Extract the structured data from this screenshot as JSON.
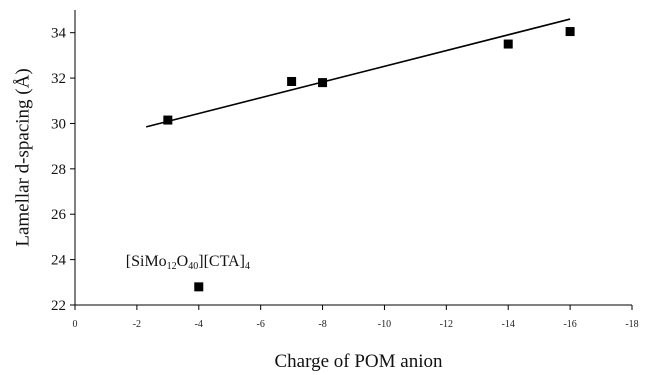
{
  "chart_data": {
    "type": "scatter",
    "xlabel": "Charge of POM anion",
    "ylabel": "Lamellar d-spacing (Å)",
    "xlim": [
      0,
      -18
    ],
    "ylim": [
      22,
      35
    ],
    "x_ticks": [
      0,
      -2,
      -4,
      -6,
      -8,
      -10,
      -12,
      -14,
      -16,
      -18
    ],
    "y_ticks": [
      22,
      24,
      26,
      28,
      30,
      32,
      34
    ],
    "grid": false,
    "series": [
      {
        "marker": "filled-square",
        "points": [
          {
            "x": -3,
            "y": 30.15
          },
          {
            "x": -4,
            "y": 22.8
          },
          {
            "x": -7,
            "y": 31.85
          },
          {
            "x": -8,
            "y": 31.8
          },
          {
            "x": -14,
            "y": 33.5
          },
          {
            "x": -16,
            "y": 34.05
          }
        ]
      }
    ],
    "trendline": {
      "x_start": -2.3,
      "y_start": 29.85,
      "x_end": -16,
      "y_end": 34.6
    },
    "annotations": [
      {
        "parts": [
          {
            "text": "[SiMo",
            "sub": false
          },
          {
            "text": "12",
            "sub": true
          },
          {
            "text": "O",
            "sub": false
          },
          {
            "text": "40",
            "sub": true
          },
          {
            "text": "][CTA]",
            "sub": false
          },
          {
            "text": "4",
            "sub": true
          }
        ],
        "near_point": {
          "x": -4,
          "y": 22.8
        }
      }
    ]
  }
}
